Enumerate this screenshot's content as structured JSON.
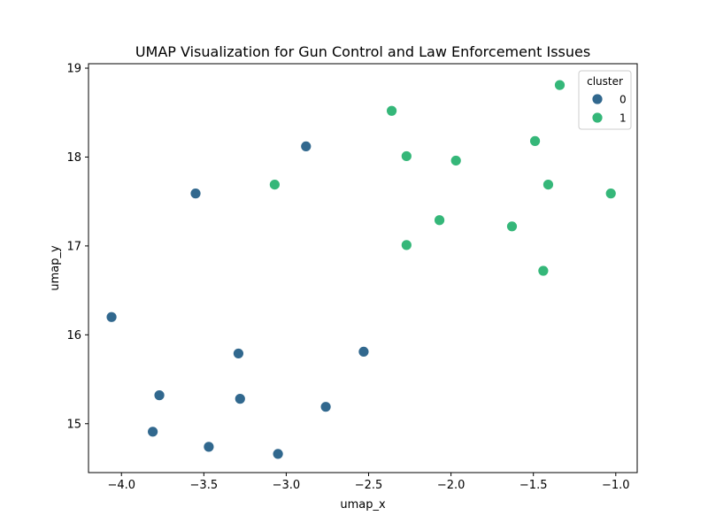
{
  "chart_data": {
    "type": "scatter",
    "title": "UMAP Visualization for Gun Control and Law Enforcement Issues",
    "xlabel": "umap_x",
    "ylabel": "umap_y",
    "xlim": [
      -4.2,
      -0.87
    ],
    "ylim": [
      14.45,
      19.05
    ],
    "xticks": [
      -4.0,
      -3.5,
      -3.0,
      -2.5,
      -2.0,
      -1.5,
      -1.0
    ],
    "xtick_labels": [
      "−4.0",
      "−3.5",
      "−3.0",
      "−2.5",
      "−2.0",
      "−1.5",
      "−1.0"
    ],
    "yticks": [
      15,
      16,
      17,
      18,
      19
    ],
    "ytick_labels": [
      "15",
      "16",
      "17",
      "18",
      "19"
    ],
    "grid": false,
    "legend": {
      "title": "cluster",
      "position": "top-right",
      "entries": [
        "0",
        "1"
      ]
    },
    "series": [
      {
        "name": "0",
        "color": "#31688e",
        "points": [
          {
            "x": -2.88,
            "y": 18.12
          },
          {
            "x": -3.55,
            "y": 17.59
          },
          {
            "x": -4.06,
            "y": 16.2
          },
          {
            "x": -3.29,
            "y": 15.79
          },
          {
            "x": -2.53,
            "y": 15.81
          },
          {
            "x": -3.77,
            "y": 15.32
          },
          {
            "x": -3.28,
            "y": 15.28
          },
          {
            "x": -2.76,
            "y": 15.19
          },
          {
            "x": -3.81,
            "y": 14.91
          },
          {
            "x": -3.47,
            "y": 14.74
          },
          {
            "x": -3.05,
            "y": 14.66
          }
        ]
      },
      {
        "name": "1",
        "color": "#35b779",
        "points": [
          {
            "x": -1.34,
            "y": 18.81
          },
          {
            "x": -2.36,
            "y": 18.52
          },
          {
            "x": -1.49,
            "y": 18.18
          },
          {
            "x": -2.27,
            "y": 18.01
          },
          {
            "x": -1.97,
            "y": 17.96
          },
          {
            "x": -3.07,
            "y": 17.69
          },
          {
            "x": -1.41,
            "y": 17.69
          },
          {
            "x": -1.03,
            "y": 17.59
          },
          {
            "x": -2.07,
            "y": 17.29
          },
          {
            "x": -1.63,
            "y": 17.22
          },
          {
            "x": -2.27,
            "y": 17.01
          },
          {
            "x": -1.44,
            "y": 16.72
          }
        ]
      }
    ]
  }
}
